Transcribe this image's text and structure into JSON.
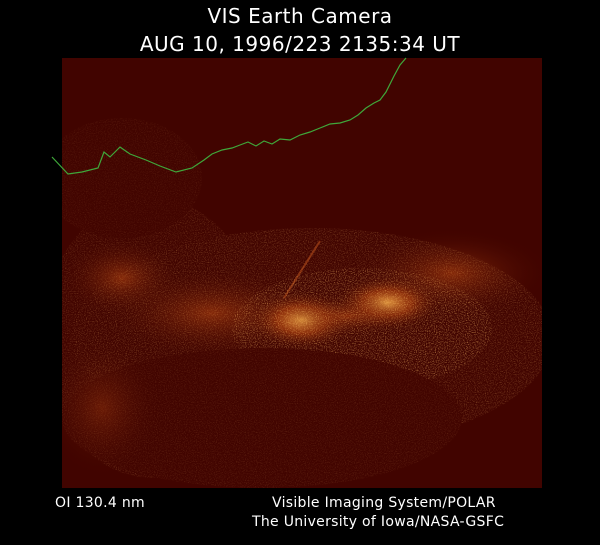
{
  "title": {
    "line1": "VIS Earth Camera",
    "line2": "AUG 10, 1996/223 2135:34 UT"
  },
  "footer": {
    "filter": "OI  130.4 nm",
    "credit_line1": "Visible Imaging System/POLAR",
    "credit_line2": "The University of Iowa/NASA-GSFC"
  },
  "colors": {
    "background": "#000000",
    "image_base": "#410400",
    "aurora_glow": "#ff9a30",
    "horizon_line": "#3fa83a",
    "text": "#ffffff"
  }
}
